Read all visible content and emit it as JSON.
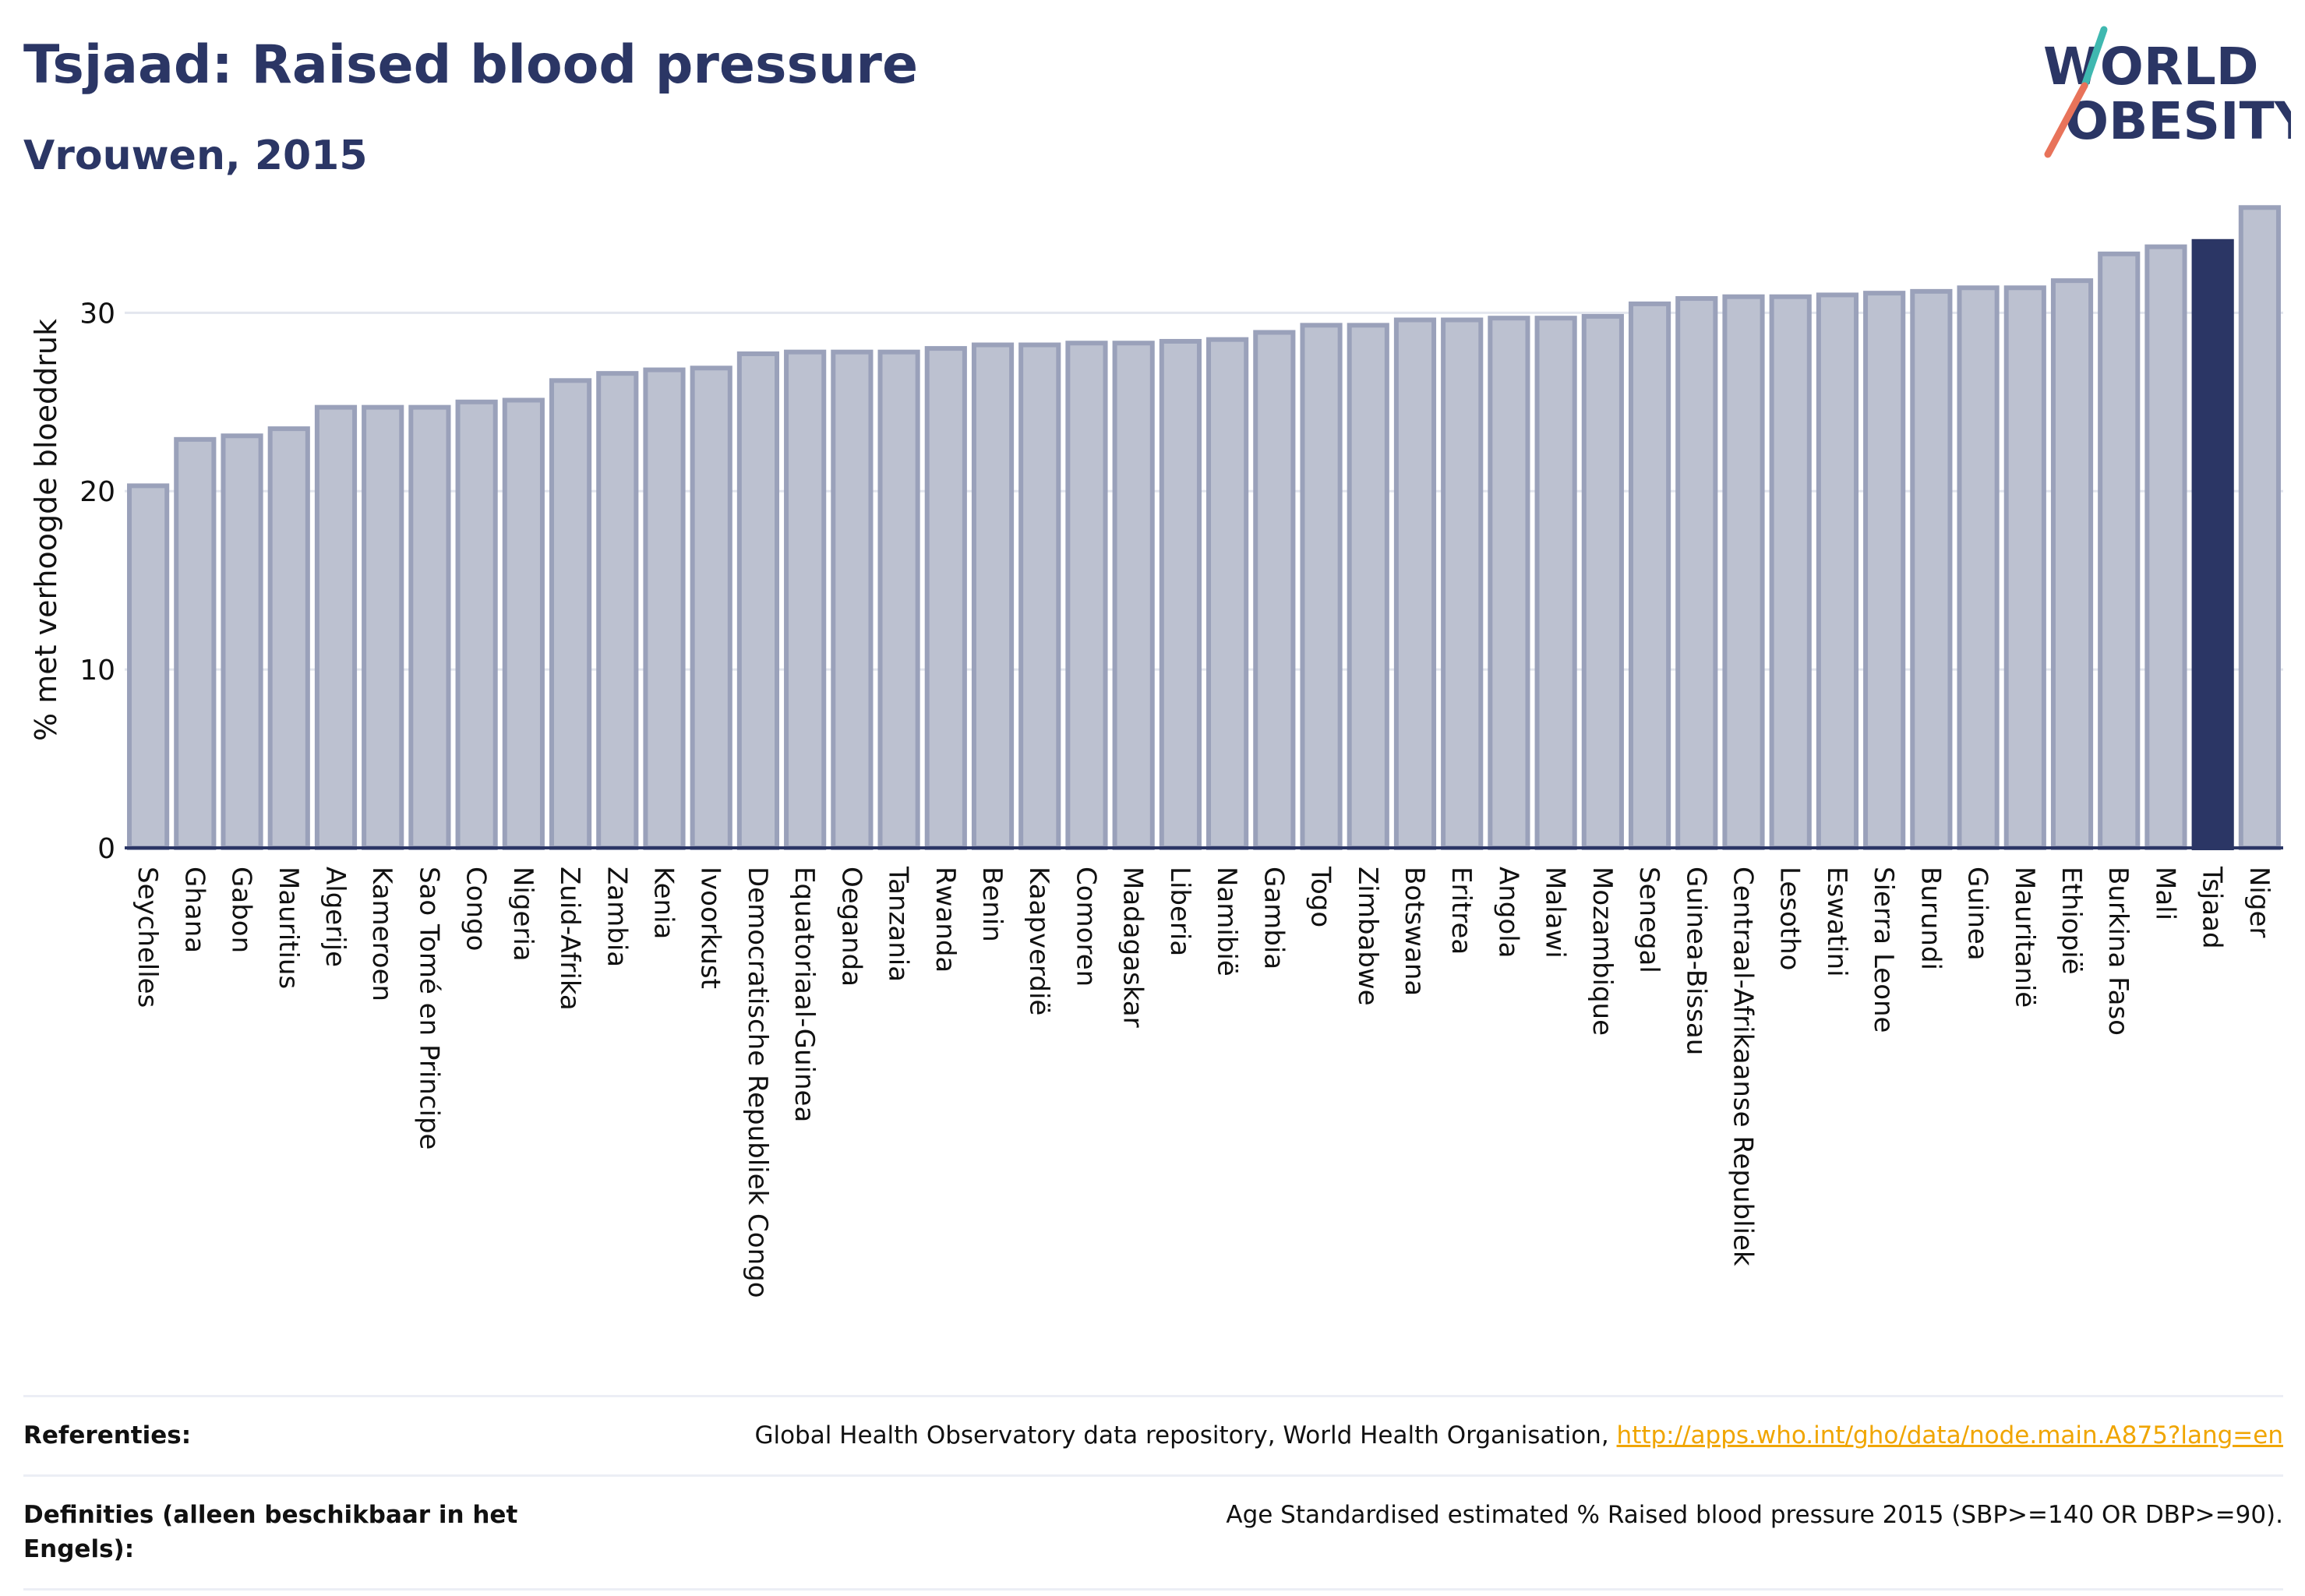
{
  "header": {
    "title": "Tsjaad: Raised blood pressure",
    "subtitle": "Vrouwen, 2015"
  },
  "logo": {
    "line1": "WORLD",
    "line2": "OBESITY"
  },
  "colors": {
    "bar": "#bcc1d0",
    "bar_border": "#9aa1ba",
    "highlight": "#2b3665",
    "grid": "#e3e6ee",
    "text": "#2b3665"
  },
  "chart_data": {
    "type": "bar",
    "title": "Tsjaad: Raised blood pressure",
    "subtitle": "Vrouwen, 2015",
    "xlabel": "",
    "ylabel": "% met verhoogde bloeddruk",
    "ylim": [
      0,
      36
    ],
    "yticks": [
      0,
      10,
      20,
      30
    ],
    "grid": true,
    "highlight": "Tsjaad",
    "categories": [
      "Seychelles",
      "Ghana",
      "Gabon",
      "Mauritius",
      "Algerije",
      "Kameroen",
      "Sao Tomé en Principe",
      "Congo",
      "Nigeria",
      "Zuid-Afrika",
      "Zambia",
      "Kenia",
      "Ivoorkust",
      "Democratische Republiek Congo",
      "Equatoriaal-Guinea",
      "Oeganda",
      "Tanzania",
      "Rwanda",
      "Benin",
      "Kaapverdië",
      "Comoren",
      "Madagaskar",
      "Liberia",
      "Namibië",
      "Gambia",
      "Togo",
      "Zimbabwe",
      "Botswana",
      "Eritrea",
      "Angola",
      "Malawi",
      "Mozambique",
      "Senegal",
      "Guinea-Bissau",
      "Centraal-Afrikaanse Republiek",
      "Lesotho",
      "Eswatini",
      "Sierra Leone",
      "Burundi",
      "Guinea",
      "Mauritanië",
      "Ethiopië",
      "Burkina Faso",
      "Mali",
      "Tsjaad",
      "Niger"
    ],
    "values": [
      20.3,
      22.9,
      23.1,
      23.5,
      24.7,
      24.7,
      24.7,
      25.0,
      25.1,
      26.2,
      26.6,
      26.8,
      26.9,
      27.7,
      27.8,
      27.8,
      27.8,
      28.0,
      28.2,
      28.2,
      28.3,
      28.3,
      28.4,
      28.5,
      28.9,
      29.3,
      29.3,
      29.6,
      29.6,
      29.7,
      29.7,
      29.8,
      30.5,
      30.8,
      30.9,
      30.9,
      31.0,
      31.1,
      31.2,
      31.4,
      31.4,
      31.8,
      33.3,
      33.7,
      34.0,
      35.9
    ]
  },
  "references": {
    "label": "Referenties:",
    "text": "Global Health Observatory data repository, World Health Organisation, ",
    "link": "http://apps.who.int/gho/data/node.main.A875?lang=en"
  },
  "definitions": {
    "label": "Definities (alleen beschikbaar in het Engels):",
    "text": "Age Standardised estimated % Raised blood pressure 2015 (SBP>=140 OR DBP>=90)."
  }
}
